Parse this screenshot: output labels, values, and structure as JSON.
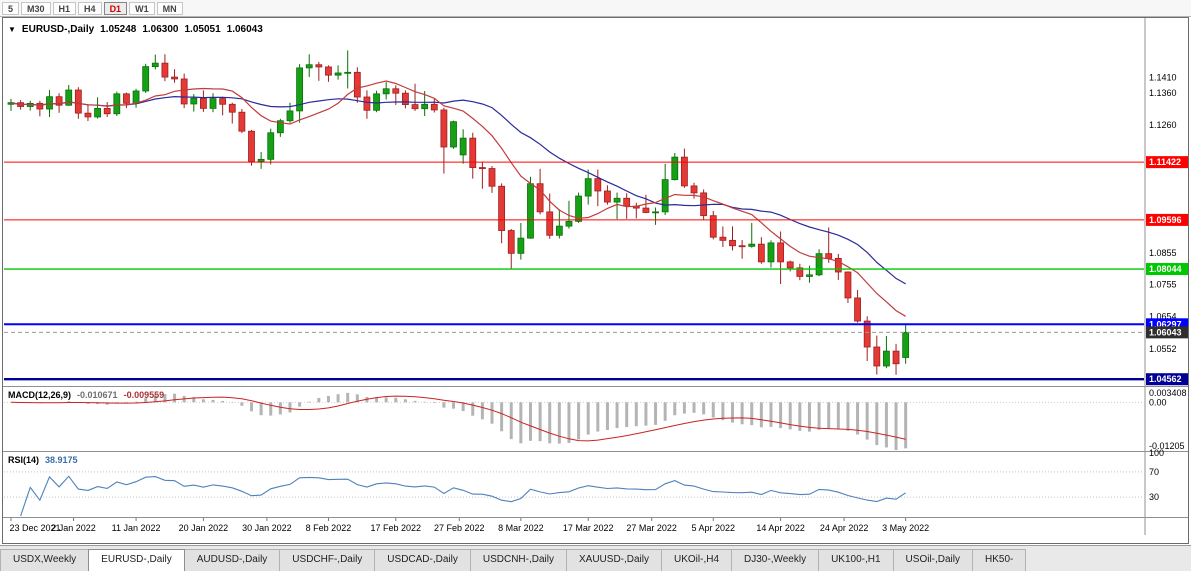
{
  "toolbar": {
    "timeframes": [
      {
        "label": "5",
        "active": false
      },
      {
        "label": "M30",
        "active": false
      },
      {
        "label": "H1",
        "active": false
      },
      {
        "label": "H4",
        "active": false
      },
      {
        "label": "D1",
        "active": true
      },
      {
        "label": "W1",
        "active": false
      },
      {
        "label": "MN",
        "active": false
      }
    ]
  },
  "chart": {
    "header": {
      "dropdown_icon": "▼",
      "symbol": "EURUSD-,Daily",
      "open": "1.05248",
      "high": "1.06300",
      "low": "1.05051",
      "close": "1.06043"
    },
    "axis_labels": [
      "1.1410",
      "1.1360",
      "1.1260",
      "1.0855",
      "1.0755",
      "1.0654",
      "1.0552"
    ],
    "levels": [
      {
        "price": 1.11422,
        "label": "1.11422",
        "color": "#ff0000",
        "width": 1
      },
      {
        "price": 1.09596,
        "label": "1.09596",
        "color": "#ff0000",
        "width": 1
      },
      {
        "price": 1.08044,
        "label": "1.08044",
        "color": "#00c800",
        "width": 1.4
      },
      {
        "price": 1.06297,
        "label": "1.06297",
        "color": "#0000ff",
        "width": 2
      },
      {
        "price": 1.04562,
        "label": "1.04562",
        "color": "#000096",
        "width": 2.4
      }
    ],
    "current_price": {
      "price": 1.06043,
      "label": "1.06043",
      "color": "#2e2e2e"
    },
    "date_labels": [
      {
        "text": "23 Dec 2021",
        "i": 0
      },
      {
        "text": "2 Jan 2022",
        "i": 6.5
      },
      {
        "text": "11 Jan 2022",
        "i": 13
      },
      {
        "text": "20 Jan 2022",
        "i": 20
      },
      {
        "text": "30 Jan 2022",
        "i": 26.6
      },
      {
        "text": "8 Feb 2022",
        "i": 33
      },
      {
        "text": "17 Feb 2022",
        "i": 40
      },
      {
        "text": "27 Feb 2022",
        "i": 46.6
      },
      {
        "text": "8 Mar 2022",
        "i": 53
      },
      {
        "text": "17 Mar 2022",
        "i": 60
      },
      {
        "text": "27 Mar 2022",
        "i": 66.6
      },
      {
        "text": "5 Apr 2022",
        "i": 73
      },
      {
        "text": "14 Apr 2022",
        "i": 80
      },
      {
        "text": "24 Apr 2022",
        "i": 86.6
      },
      {
        "text": "3 May 2022",
        "i": 93
      }
    ],
    "colors": {
      "up": "#16a016",
      "up_border": "#0a700a",
      "down": "#e53935",
      "down_border": "#9f1f1f",
      "ma_fast": "#c23b3b",
      "ma_slow": "#2a2a9a"
    }
  },
  "chart_data": {
    "type": "candlestick",
    "symbol": "EURUSD-",
    "timeframe": "Daily",
    "candles": [
      [
        "2021.12.23",
        1.1325,
        1.1342,
        1.1304,
        1.133
      ],
      [
        "2021.12.24",
        1.133,
        1.1338,
        1.1308,
        1.1318
      ],
      [
        "2021.12.27",
        1.1318,
        1.1336,
        1.1305,
        1.1328
      ],
      [
        "2021.12.28",
        1.1328,
        1.1336,
        1.1287,
        1.131
      ],
      [
        "2021.12.29",
        1.131,
        1.137,
        1.1285,
        1.1349
      ],
      [
        "2021.12.30",
        1.1349,
        1.136,
        1.1298,
        1.1322
      ],
      [
        "2021.12.31",
        1.1322,
        1.1386,
        1.132,
        1.137
      ],
      [
        "2022.01.03",
        1.137,
        1.1379,
        1.1279,
        1.1297
      ],
      [
        "2022.01.04",
        1.1297,
        1.1323,
        1.1272,
        1.1285
      ],
      [
        "2022.01.05",
        1.1285,
        1.1347,
        1.128,
        1.1312
      ],
      [
        "2022.01.06",
        1.1312,
        1.1332,
        1.1285,
        1.1295
      ],
      [
        "2022.01.07",
        1.1295,
        1.1365,
        1.1288,
        1.1358
      ],
      [
        "2022.01.10",
        1.1358,
        1.1362,
        1.1313,
        1.1328
      ],
      [
        "2022.01.11",
        1.1328,
        1.1374,
        1.1314,
        1.1367
      ],
      [
        "2022.01.12",
        1.1367,
        1.1453,
        1.1361,
        1.1444
      ],
      [
        "2022.01.13",
        1.1444,
        1.1482,
        1.1435,
        1.1455
      ],
      [
        "2022.01.14",
        1.1455,
        1.1483,
        1.1398,
        1.1411
      ],
      [
        "2022.01.17",
        1.1411,
        1.1436,
        1.1393,
        1.1405
      ],
      [
        "2022.01.18",
        1.1405,
        1.1422,
        1.1313,
        1.1326
      ],
      [
        "2022.01.19",
        1.1326,
        1.1357,
        1.1302,
        1.1344
      ],
      [
        "2022.01.20",
        1.1344,
        1.1369,
        1.1301,
        1.1312
      ],
      [
        "2022.01.21",
        1.1312,
        1.136,
        1.13,
        1.1343
      ],
      [
        "2022.01.24",
        1.1343,
        1.1349,
        1.129,
        1.1325
      ],
      [
        "2022.01.25",
        1.1325,
        1.133,
        1.1264,
        1.13
      ],
      [
        "2022.01.26",
        1.13,
        1.131,
        1.1234,
        1.124
      ],
      [
        "2022.01.27",
        1.124,
        1.1244,
        1.1131,
        1.1144
      ],
      [
        "2022.01.28",
        1.1144,
        1.1174,
        1.1121,
        1.1151
      ],
      [
        "2022.01.31",
        1.1151,
        1.1248,
        1.1135,
        1.1235
      ],
      [
        "2022.02.01",
        1.1235,
        1.1279,
        1.1222,
        1.1273
      ],
      [
        "2022.02.02",
        1.1273,
        1.133,
        1.1266,
        1.1304
      ],
      [
        "2022.02.03",
        1.1304,
        1.1452,
        1.1267,
        1.144
      ],
      [
        "2022.02.04",
        1.144,
        1.1483,
        1.1411,
        1.145
      ],
      [
        "2022.02.07",
        1.145,
        1.1459,
        1.1399,
        1.1443
      ],
      [
        "2022.02.08",
        1.1443,
        1.1448,
        1.1396,
        1.1417
      ],
      [
        "2022.02.09",
        1.1417,
        1.1448,
        1.1403,
        1.1424
      ],
      [
        "2022.02.10",
        1.1424,
        1.1495,
        1.1375,
        1.1426
      ],
      [
        "2022.02.11",
        1.1426,
        1.1442,
        1.133,
        1.1348
      ],
      [
        "2022.02.14",
        1.1348,
        1.1369,
        1.1279,
        1.1306
      ],
      [
        "2022.02.15",
        1.1306,
        1.1368,
        1.13,
        1.1358
      ],
      [
        "2022.02.16",
        1.1358,
        1.1395,
        1.134,
        1.1374
      ],
      [
        "2022.02.17",
        1.1374,
        1.1385,
        1.1323,
        1.136
      ],
      [
        "2022.02.18",
        1.136,
        1.1369,
        1.1312,
        1.1324
      ],
      [
        "2022.02.21",
        1.1324,
        1.139,
        1.1304,
        1.1311
      ],
      [
        "2022.02.22",
        1.1311,
        1.1367,
        1.1288,
        1.1325
      ],
      [
        "2022.02.23",
        1.1325,
        1.1342,
        1.1299,
        1.1307
      ],
      [
        "2022.02.24",
        1.1307,
        1.1314,
        1.1106,
        1.119
      ],
      [
        "2022.02.25",
        1.119,
        1.1273,
        1.1184,
        1.127
      ],
      [
        "2022.02.28",
        1.1165,
        1.1246,
        1.1137,
        1.1218
      ],
      [
        "2022.03.01",
        1.1218,
        1.1235,
        1.109,
        1.1125
      ],
      [
        "2022.03.02",
        1.1125,
        1.1144,
        1.1058,
        1.1122
      ],
      [
        "2022.03.03",
        1.1122,
        1.113,
        1.1045,
        1.1066
      ],
      [
        "2022.03.04",
        1.1066,
        1.1075,
        1.0886,
        1.0926
      ],
      [
        "2022.03.07",
        1.0926,
        1.0931,
        1.0806,
        1.0854
      ],
      [
        "2022.03.08",
        1.0854,
        1.095,
        1.0834,
        1.0902
      ],
      [
        "2022.03.09",
        1.0902,
        1.1096,
        1.09,
        1.1074
      ],
      [
        "2022.03.10",
        1.1074,
        1.1121,
        1.0977,
        1.0985
      ],
      [
        "2022.03.11",
        1.0985,
        1.1043,
        1.09,
        1.0911
      ],
      [
        "2022.03.14",
        1.0911,
        1.0993,
        1.0901,
        1.094
      ],
      [
        "2022.03.15",
        1.094,
        1.102,
        1.0932,
        1.0955
      ],
      [
        "2022.03.16",
        1.0955,
        1.1046,
        1.095,
        1.1035
      ],
      [
        "2022.03.17",
        1.1035,
        1.1119,
        1.1008,
        1.109
      ],
      [
        "2022.03.18",
        1.109,
        1.1119,
        1.1003,
        1.1051
      ],
      [
        "2022.03.21",
        1.1051,
        1.1069,
        1.1008,
        1.1016
      ],
      [
        "2022.03.22",
        1.1016,
        1.1046,
        1.0962,
        1.1028
      ],
      [
        "2022.03.23",
        1.1028,
        1.1044,
        1.0963,
        1.1003
      ],
      [
        "2022.03.24",
        1.1003,
        1.1014,
        1.0964,
        1.0997
      ],
      [
        "2022.03.25",
        1.0997,
        1.1039,
        1.0981,
        1.0983
      ],
      [
        "2022.03.28",
        1.0983,
        1.0999,
        1.0944,
        1.0985
      ],
      [
        "2022.03.29",
        1.0985,
        1.1137,
        1.0975,
        1.1087
      ],
      [
        "2022.03.30",
        1.1087,
        1.1171,
        1.1084,
        1.1158
      ],
      [
        "2022.03.31",
        1.1158,
        1.1185,
        1.1061,
        1.1067
      ],
      [
        "2022.04.01",
        1.1067,
        1.1077,
        1.1027,
        1.1045
      ],
      [
        "2022.04.04",
        1.1045,
        1.1056,
        1.0959,
        1.0973
      ],
      [
        "2022.04.05",
        1.0973,
        1.0988,
        1.0898,
        1.0905
      ],
      [
        "2022.04.06",
        1.0905,
        1.0939,
        1.0874,
        1.0895
      ],
      [
        "2022.04.07",
        1.0895,
        1.0939,
        1.0863,
        1.0878
      ],
      [
        "2022.04.08",
        1.0878,
        1.0896,
        1.0837,
        1.0876
      ],
      [
        "2022.04.11",
        1.0876,
        1.095,
        1.0872,
        1.0883
      ],
      [
        "2022.04.12",
        1.0883,
        1.0905,
        1.0821,
        1.0827
      ],
      [
        "2022.04.13",
        1.0827,
        1.0895,
        1.0809,
        1.0887
      ],
      [
        "2022.04.14",
        1.0887,
        1.0923,
        1.0757,
        1.0827
      ],
      [
        "2022.04.15",
        1.0827,
        1.0831,
        1.0797,
        1.0808
      ],
      [
        "2022.04.18",
        1.0808,
        1.0821,
        1.0769,
        1.0781
      ],
      [
        "2022.04.19",
        1.0781,
        1.0815,
        1.0761,
        1.0786
      ],
      [
        "2022.04.20",
        1.0786,
        1.0867,
        1.0782,
        1.0853
      ],
      [
        "2022.04.21",
        1.0853,
        1.0936,
        1.0824,
        1.0838
      ],
      [
        "2022.04.22",
        1.0838,
        1.0852,
        1.077,
        1.0795
      ],
      [
        "2022.04.25",
        1.0795,
        1.0797,
        1.0697,
        1.0713
      ],
      [
        "2022.04.26",
        1.0713,
        1.0738,
        1.0635,
        1.064
      ],
      [
        "2022.04.27",
        1.064,
        1.0655,
        1.0514,
        1.0558
      ],
      [
        "2022.04.28",
        1.0558,
        1.0594,
        1.0471,
        1.0498
      ],
      [
        "2022.04.29",
        1.0498,
        1.0593,
        1.0491,
        1.0545
      ],
      [
        "2022.05.02",
        1.0545,
        1.0568,
        1.047,
        1.0505
      ],
      [
        "2022.05.03",
        1.05248,
        1.063,
        1.05051,
        1.06043
      ]
    ],
    "overlays": [
      {
        "name": "sma-fast",
        "period": 10,
        "color_key": "ma_fast"
      },
      {
        "name": "sma-slow",
        "period": 21,
        "color_key": "ma_slow"
      }
    ]
  },
  "macd": {
    "label": "MACD(12,26,9)",
    "main_value": "-0.010671",
    "signal_value": "-0.009559",
    "axis_top": "0.003408",
    "axis_zero": "0.00",
    "axis_bottom": "-0.01205",
    "hist_color": "#b4b4b4",
    "signal_color": "#cc2222"
  },
  "rsi": {
    "label": "RSI(14)",
    "value": "38.9175",
    "axis": [
      "100",
      "70",
      "30"
    ],
    "levels": [
      70,
      30
    ],
    "line_color": "#4f81bd"
  },
  "tabs": [
    {
      "label": "USDX,Weekly",
      "active": false
    },
    {
      "label": "EURUSD-,Daily",
      "active": true
    },
    {
      "label": "AUDUSD-,Daily",
      "active": false
    },
    {
      "label": "USDCHF-,Daily",
      "active": false
    },
    {
      "label": "USDCAD-,Daily",
      "active": false
    },
    {
      "label": "USDCNH-,Daily",
      "active": false
    },
    {
      "label": "XAUUSD-,Daily",
      "active": false
    },
    {
      "label": "UKOil-,H4",
      "active": false
    },
    {
      "label": "DJ30-,Weekly",
      "active": false
    },
    {
      "label": "UK100-,H1",
      "active": false
    },
    {
      "label": "USOil-,Daily",
      "active": false
    },
    {
      "label": "HK50-",
      "active": false
    }
  ]
}
